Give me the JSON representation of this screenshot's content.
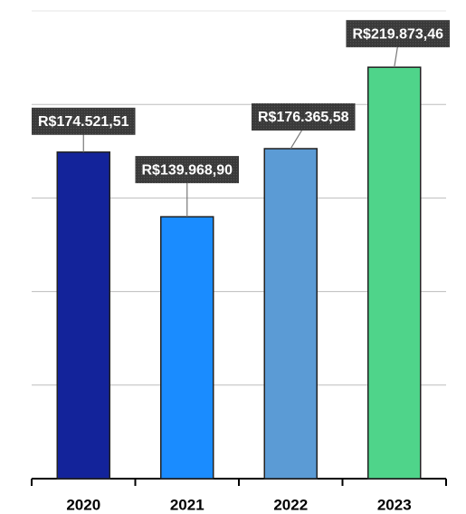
{
  "chart_data": {
    "type": "bar",
    "categories": [
      "2020",
      "2021",
      "2022",
      "2023"
    ],
    "values": [
      174521.51,
      139968.9,
      176365.58,
      219873.46
    ],
    "value_labels": [
      "R$174.521,51",
      "R$139.968,90",
      "R$176.365,58",
      "R$219.873,46"
    ],
    "colors": [
      "#13239a",
      "#1a8cff",
      "#5b9bd5",
      "#4fd48a"
    ],
    "ylim": [
      0,
      250000
    ],
    "yticks": [
      0,
      50000,
      100000,
      150000,
      200000,
      250000
    ],
    "grid": true
  }
}
